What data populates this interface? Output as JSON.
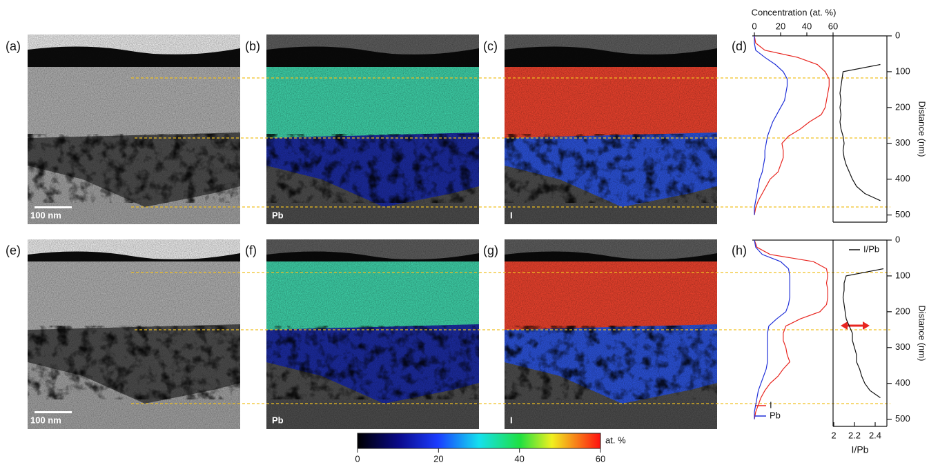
{
  "panels": {
    "letters": [
      "(a)",
      "(b)",
      "(c)",
      "(d)",
      "(e)",
      "(f)",
      "(g)",
      "(h)"
    ],
    "scale_bars": [
      "100 nm",
      "100 nm"
    ],
    "element_labels": [
      "Pb",
      "I",
      "Pb",
      "I"
    ]
  },
  "colorbar": {
    "lim": [
      0,
      60
    ],
    "ticks": [
      0,
      20,
      40,
      60
    ],
    "label": "at. %"
  },
  "chart_data": [
    {
      "type": "profile",
      "xlabel": "Concentration (at. %)",
      "ylabel": "Distance (nm)",
      "xlim": [
        0,
        60
      ],
      "xticks": [
        0,
        20,
        40,
        60
      ],
      "x2lim": [
        2,
        2.5
      ],
      "ylim": [
        0,
        520
      ],
      "yticks": [
        0,
        100,
        200,
        300,
        400,
        500
      ],
      "depth": [
        0,
        20,
        40,
        60,
        80,
        100,
        120,
        140,
        160,
        180,
        200,
        220,
        240,
        260,
        280,
        300,
        320,
        340,
        360,
        380,
        400,
        420,
        440,
        460,
        480,
        500
      ],
      "series": [
        {
          "color": "#e8251f",
          "values": [
            0,
            1,
            8,
            33,
            48,
            54,
            57,
            57,
            56,
            55,
            54,
            51,
            42,
            35,
            26,
            21,
            22,
            22,
            20,
            18,
            12,
            9,
            6,
            3,
            1,
            0
          ]
        },
        {
          "color": "#1f2fd8",
          "values": [
            0,
            0,
            1,
            8,
            16,
            22,
            25,
            25,
            24,
            23,
            20,
            17,
            14,
            12,
            10,
            9,
            8,
            8,
            7,
            6,
            4,
            3,
            2,
            1,
            0,
            0
          ]
        },
        {
          "color": "#111111",
          "axis": "x2",
          "values": [
            null,
            null,
            null,
            null,
            2.45,
            2.09,
            2.08,
            2.07,
            2.06,
            2.07,
            2.06,
            2.07,
            2.06,
            2.07,
            2.09,
            2.1,
            2.09,
            2.1,
            2.12,
            2.15,
            2.18,
            2.22,
            2.3,
            2.45,
            null,
            null
          ]
        }
      ]
    },
    {
      "type": "profile",
      "ylabel": "Distance (nm)",
      "x2label": "I/Pb",
      "xlim": [
        0,
        60
      ],
      "x2lim": [
        2,
        2.5
      ],
      "x2ticks": [
        2,
        2.2,
        2.4
      ],
      "ylim": [
        0,
        520
      ],
      "yticks": [
        0,
        100,
        200,
        300,
        400,
        500
      ],
      "depth": [
        0,
        20,
        40,
        60,
        80,
        100,
        120,
        140,
        160,
        180,
        200,
        220,
        240,
        260,
        280,
        300,
        320,
        340,
        360,
        380,
        400,
        420,
        440,
        460,
        480,
        500
      ],
      "series": [
        {
          "name": "I",
          "color": "#e8251f",
          "values": [
            0,
            2,
            12,
            45,
            55,
            56,
            55,
            56,
            56,
            55,
            50,
            35,
            24,
            22,
            22,
            24,
            25,
            27,
            22,
            18,
            12,
            8,
            5,
            3,
            1,
            0
          ]
        },
        {
          "name": "Pb",
          "color": "#1f2fd8",
          "values": [
            0,
            1,
            6,
            20,
            26,
            27,
            27,
            27,
            27,
            26,
            24,
            17,
            11,
            10,
            10,
            10,
            10,
            10,
            9,
            7,
            5,
            3,
            2,
            1,
            0,
            0
          ]
        },
        {
          "name": "I/Pb",
          "color": "#111111",
          "axis": "x2",
          "values": [
            null,
            null,
            null,
            null,
            2.48,
            2.12,
            2.1,
            2.1,
            2.09,
            2.1,
            2.11,
            2.12,
            2.15,
            2.18,
            2.18,
            2.2,
            2.22,
            2.22,
            2.25,
            2.27,
            2.3,
            2.35,
            2.45,
            null,
            null,
            null
          ]
        }
      ]
    }
  ]
}
